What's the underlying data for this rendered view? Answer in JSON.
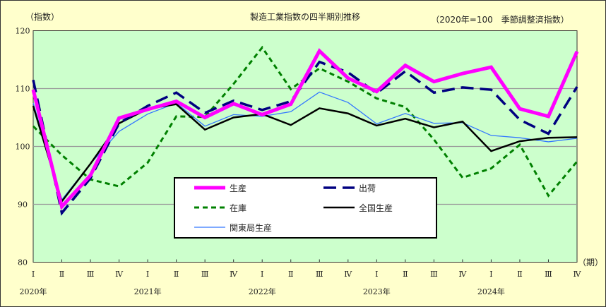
{
  "chart_data": {
    "type": "line",
    "title": "製造工業指数の四半期別推移",
    "subtitle": "（2020年=100　季節調整済指数）",
    "ylabel": "（指数）",
    "xlabel": "（期）",
    "ylim": [
      80,
      120
    ],
    "yticks": [
      80,
      90,
      100,
      110,
      120
    ],
    "grid": true,
    "legend_position": "center-bottom",
    "categories": [
      "Ⅰ",
      "Ⅱ",
      "Ⅲ",
      "Ⅳ",
      "Ⅰ",
      "Ⅱ",
      "Ⅲ",
      "Ⅳ",
      "Ⅰ",
      "Ⅱ",
      "Ⅲ",
      "Ⅳ",
      "Ⅰ",
      "Ⅱ",
      "Ⅲ",
      "Ⅳ",
      "Ⅰ",
      "Ⅱ",
      "Ⅲ",
      "Ⅳ"
    ],
    "year_labels": [
      {
        "label": "2020年",
        "index": 0
      },
      {
        "label": "2021年",
        "index": 4
      },
      {
        "label": "2022年",
        "index": 8
      },
      {
        "label": "2023年",
        "index": 12
      },
      {
        "label": "2024年",
        "index": 16
      }
    ],
    "series": [
      {
        "name": "生産",
        "color": "#ff00ff",
        "style": "solid-thick",
        "values": [
          109.8,
          89.6,
          95.0,
          104.9,
          106.4,
          107.8,
          105.0,
          107.4,
          105.5,
          107.3,
          116.5,
          111.8,
          109.5,
          114.0,
          111.2,
          112.6,
          113.7,
          106.5,
          105.2,
          116.4
        ]
      },
      {
        "name": "出荷",
        "color": "#000080",
        "style": "long-dash",
        "values": [
          111.5,
          88.5,
          94.5,
          104.0,
          107.0,
          109.3,
          105.8,
          107.9,
          106.3,
          107.8,
          114.6,
          112.8,
          109.2,
          113.0,
          109.3,
          110.2,
          109.8,
          104.6,
          102.2,
          110.3
        ]
      },
      {
        "name": "在庫",
        "color": "#008000",
        "style": "short-dash",
        "values": [
          103.5,
          98.5,
          94.3,
          93.1,
          97.2,
          105.2,
          105.1,
          110.8,
          117.1,
          109.9,
          113.5,
          111.2,
          108.3,
          106.8,
          101.2,
          94.6,
          96.2,
          100.3,
          91.5,
          97.4
        ]
      },
      {
        "name": "全国生産",
        "color": "#000000",
        "style": "solid",
        "values": [
          107.0,
          90.5,
          97.0,
          104.0,
          106.5,
          107.3,
          102.9,
          105.0,
          105.6,
          103.7,
          106.6,
          105.7,
          103.6,
          104.8,
          103.3,
          104.3,
          99.2,
          100.9,
          101.5,
          101.6
        ]
      },
      {
        "name": "関東局生産",
        "color": "#3377ff",
        "style": "solid-thin",
        "values": [
          107.5,
          90.8,
          97.0,
          102.6,
          105.6,
          107.5,
          103.5,
          105.5,
          105.2,
          106.0,
          109.4,
          107.6,
          103.9,
          105.7,
          104.0,
          104.1,
          101.9,
          101.5,
          100.8,
          101.4
        ]
      }
    ]
  },
  "colors": {
    "background": "#ffffcc",
    "plot_area": "#ccffcc"
  }
}
